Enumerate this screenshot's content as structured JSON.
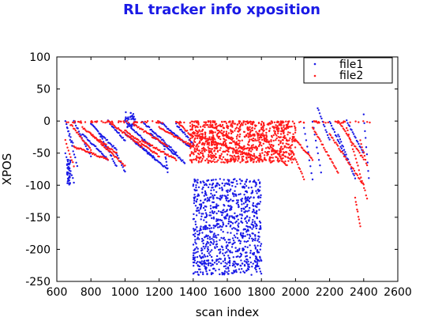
{
  "chart_data": {
    "type": "scatter",
    "title": "RL tracker info xposition",
    "xlabel": "scan index",
    "ylabel": "XPOS",
    "xlim": [
      600,
      2600
    ],
    "ylim": [
      -250,
      100
    ],
    "xticks": [
      "600",
      "800",
      "1000",
      "1200",
      "1400",
      "1600",
      "1800",
      "2000",
      "2200",
      "2400",
      "2600"
    ],
    "yticks": [
      "100",
      "50",
      "0",
      "-50",
      "-100",
      "-150",
      "-200",
      "-250"
    ],
    "grid": false,
    "legend_position": "top-right",
    "colors": {
      "title": "#1a1ae6",
      "file1": "#1a1ae6",
      "file2": "#ff1a1a"
    },
    "series": [
      {
        "name": "file1",
        "color": "#1a1ae6",
        "segments": [
          [
            [
              650,
              0
            ],
            [
              700,
              -40
            ]
          ],
          [
            [
              650,
              -50
            ],
            [
              700,
              -95
            ]
          ],
          [
            [
              660,
              -10
            ],
            [
              720,
              -70
            ]
          ],
          [
            [
              700,
              0
            ],
            [
              800,
              -55
            ]
          ],
          [
            [
              750,
              -20
            ],
            [
              900,
              -60
            ]
          ],
          [
            [
              800,
              -5
            ],
            [
              950,
              -45
            ]
          ],
          [
            [
              850,
              -20
            ],
            [
              950,
              -70
            ]
          ],
          [
            [
              900,
              0
            ],
            [
              1000,
              -30
            ]
          ],
          [
            [
              950,
              -50
            ],
            [
              1000,
              -80
            ]
          ],
          [
            [
              1000,
              0
            ],
            [
              1150,
              -40
            ]
          ],
          [
            [
              1000,
              -20
            ],
            [
              1180,
              -60
            ]
          ],
          [
            [
              1050,
              -30
            ],
            [
              1250,
              -75
            ]
          ],
          [
            [
              1100,
              0
            ],
            [
              1300,
              -50
            ]
          ],
          [
            [
              1150,
              -20
            ],
            [
              1350,
              -65
            ]
          ],
          [
            [
              1200,
              0
            ],
            [
              1380,
              -40
            ]
          ],
          [
            [
              1230,
              -40
            ],
            [
              1250,
              -80
            ]
          ],
          [
            [
              1300,
              -5
            ],
            [
              1400,
              -35
            ]
          ],
          [
            [
              2050,
              -10
            ],
            [
              2100,
              -90
            ]
          ],
          [
            [
              2100,
              0
            ],
            [
              2150,
              -80
            ]
          ],
          [
            [
              2130,
              20
            ],
            [
              2200,
              -30
            ]
          ],
          [
            [
              2200,
              0
            ],
            [
              2300,
              -60
            ]
          ],
          [
            [
              2250,
              -20
            ],
            [
              2350,
              -90
            ]
          ],
          [
            [
              2300,
              0
            ],
            [
              2400,
              -50
            ]
          ],
          [
            [
              2400,
              10
            ],
            [
              2430,
              -90
            ]
          ]
        ],
        "clusters": [
          {
            "x": [
              1400,
              1800
            ],
            "y": [
              -240,
              -90
            ]
          },
          {
            "x": [
              1000,
              1060
            ],
            "y": [
              -10,
              15
            ]
          },
          {
            "x": [
              660,
              680
            ],
            "y": [
              -100,
              -60
            ]
          }
        ]
      },
      {
        "name": "file2",
        "color": "#ff1a1a",
        "segments": [
          [
            [
              650,
              -30
            ],
            [
              700,
              -70
            ]
          ],
          [
            [
              680,
              -5
            ],
            [
              800,
              -45
            ]
          ],
          [
            [
              700,
              -40
            ],
            [
              900,
              -60
            ]
          ],
          [
            [
              750,
              -10
            ],
            [
              950,
              -50
            ]
          ],
          [
            [
              800,
              -20
            ],
            [
              1000,
              -70
            ]
          ],
          [
            [
              900,
              0
            ],
            [
              1100,
              -40
            ]
          ],
          [
            [
              1000,
              -15
            ],
            [
              1200,
              -55
            ]
          ],
          [
            [
              1050,
              -5
            ],
            [
              1250,
              -40
            ]
          ],
          [
            [
              1100,
              -30
            ],
            [
              1300,
              -60
            ]
          ],
          [
            [
              1200,
              -10
            ],
            [
              1400,
              -40
            ]
          ],
          [
            [
              1300,
              0
            ],
            [
              1400,
              -25
            ]
          ],
          [
            [
              1400,
              -20
            ],
            [
              1800,
              -60
            ]
          ],
          [
            [
              1500,
              -5
            ],
            [
              1700,
              -45
            ]
          ],
          [
            [
              1800,
              -20
            ],
            [
              1950,
              -70
            ]
          ],
          [
            [
              1900,
              0
            ],
            [
              2050,
              -90
            ]
          ],
          [
            [
              2000,
              -30
            ],
            [
              2100,
              -60
            ]
          ],
          [
            [
              2100,
              -10
            ],
            [
              2250,
              -80
            ]
          ],
          [
            [
              2200,
              -20
            ],
            [
              2400,
              -100
            ]
          ],
          [
            [
              2250,
              0
            ],
            [
              2400,
              -60
            ]
          ],
          [
            [
              2300,
              -10
            ],
            [
              2420,
              -120
            ]
          ],
          [
            [
              2350,
              -120
            ],
            [
              2380,
              -165
            ]
          ],
          [
            [
              2380,
              -30
            ],
            [
              2420,
              -70
            ]
          ]
        ],
        "clusters": [
          {
            "x": [
              1380,
              2000
            ],
            "y": [
              -65,
              0
            ]
          },
          {
            "x": [
              650,
              2440
            ],
            "y": [
              -3,
              0
            ]
          }
        ]
      }
    ]
  }
}
